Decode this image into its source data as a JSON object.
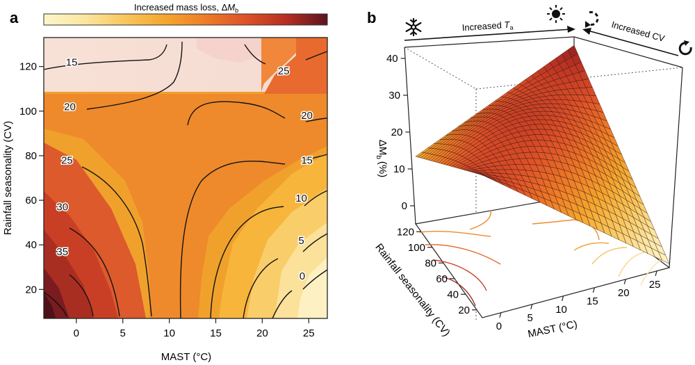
{
  "chart_data": [
    {
      "type": "heatmap",
      "panel_label": "a",
      "colorbar": {
        "label_text": "Increased mass loss, Δ",
        "label_symbol": "M",
        "label_sub": "b",
        "stops": [
          "#fdf6c9",
          "#fbe6a2",
          "#f8c75c",
          "#f4a62e",
          "#ee7c27",
          "#dd5128",
          "#b52f22",
          "#5b1420"
        ]
      },
      "xlabel": "MAST (°C)",
      "ylabel": "Rainfall seasonality (CV)",
      "xlim": [
        -3.5,
        27
      ],
      "ylim": [
        7,
        133
      ],
      "x_ticks": [
        0,
        5,
        10,
        15,
        20,
        25
      ],
      "x_tick_labels": [
        "0",
        "5",
        "10",
        "15",
        "20",
        "25"
      ],
      "y_ticks": [
        20,
        40,
        60,
        80,
        100,
        120
      ],
      "y_tick_labels": [
        "20",
        "40",
        "60",
        "80",
        "100",
        "120"
      ],
      "contour_labels": [
        {
          "text": "15",
          "x": -0.5,
          "y": 122
        },
        {
          "text": "25",
          "x": 22.3,
          "y": 118
        },
        {
          "text": "20",
          "x": -0.7,
          "y": 102
        },
        {
          "text": "20",
          "x": 24.8,
          "y": 98
        },
        {
          "text": "25",
          "x": -1.0,
          "y": 78
        },
        {
          "text": "15",
          "x": 24.8,
          "y": 78
        },
        {
          "text": "10",
          "x": 24.2,
          "y": 61
        },
        {
          "text": "30",
          "x": -1.5,
          "y": 57
        },
        {
          "text": "5",
          "x": 24.2,
          "y": 42
        },
        {
          "text": "35",
          "x": -1.5,
          "y": 37
        },
        {
          "text": "0",
          "x": 24.3,
          "y": 26
        }
      ]
    },
    {
      "type": "surface",
      "panel_label": "b",
      "zlabel": "ΔM",
      "zlabel_sub": "b",
      "zlabel_unit": "(%)",
      "xlabel": "MAST (°C)",
      "ylabel": "Rainfall seasonality (CV)",
      "z_ticks": [
        0,
        10,
        20,
        30,
        40
      ],
      "z_tick_labels": [
        "0",
        "10",
        "20",
        "30",
        "40"
      ],
      "x_ticks": [
        0,
        5,
        10,
        15,
        20,
        25
      ],
      "x_tick_labels": [
        "0",
        "5",
        "10",
        "15",
        "20",
        "25"
      ],
      "y_ticks": [
        20,
        40,
        60,
        80,
        100,
        120
      ],
      "y_tick_labels": [
        "20",
        "40",
        "60",
        "80",
        "100",
        "120"
      ],
      "zlim": [
        -5,
        42
      ],
      "surface_corners": [
        {
          "mast": -3,
          "cv": 130,
          "dm": 12
        },
        {
          "mast": -3,
          "cv": 10,
          "dm": 31
        },
        {
          "mast": 27,
          "cv": 130,
          "dm": 33
        },
        {
          "mast": 27,
          "cv": 10,
          "dm": -4
        }
      ],
      "arrow_temperature": {
        "text": "Increased ",
        "symbol": "T",
        "sub": "a"
      },
      "arrow_cv": {
        "text": "Increased CV"
      }
    }
  ]
}
